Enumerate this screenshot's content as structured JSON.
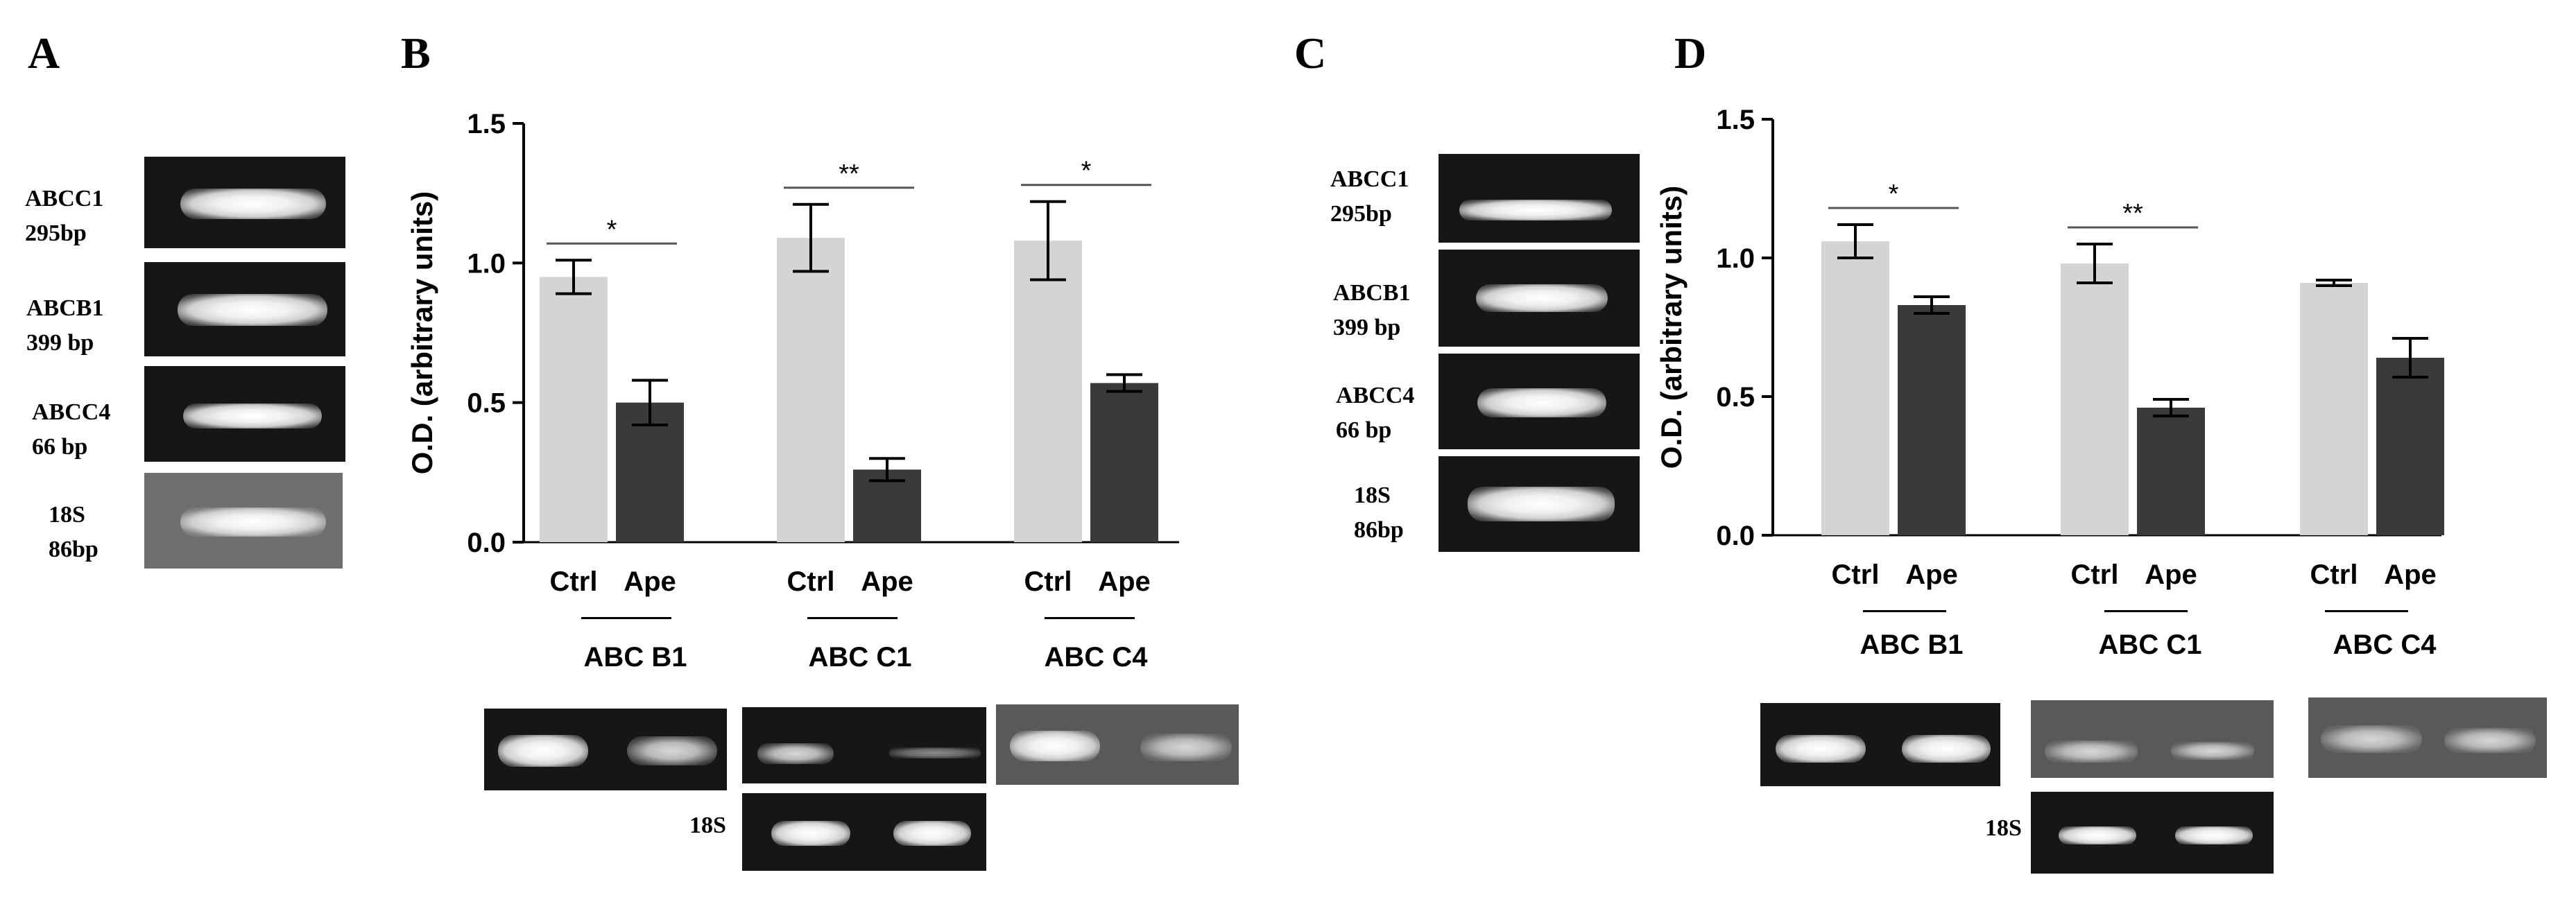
{
  "panels": {
    "A": "A",
    "B": "B",
    "C": "C",
    "D": "D"
  },
  "panel_a_labels": [
    {
      "gene": "ABCC1",
      "size": "295bp"
    },
    {
      "gene": "ABCB1",
      "size": "399 bp"
    },
    {
      "gene": "ABCC4",
      "size": "66 bp"
    },
    {
      "gene": "18S",
      "size": "86bp"
    }
  ],
  "panel_c_labels": [
    {
      "gene": "ABCC1",
      "size": "295bp"
    },
    {
      "gene": "ABCB1",
      "size": "399 bp"
    },
    {
      "gene": "ABCC4",
      "size": "66 bp"
    },
    {
      "gene": "18S",
      "size": "86bp"
    }
  ],
  "gel_18s_label": "18S",
  "colors": {
    "ctrl": "#d4d4d4",
    "ape": "#3a3a3a",
    "axis": "#000000"
  },
  "chart_data": [
    {
      "panel": "B",
      "type": "bar",
      "ylabel": "O.D. (arbitrary units)",
      "ylim": [
        0,
        1.5
      ],
      "yticks": [
        "0.0",
        "0.5",
        "1.0",
        "1.5"
      ],
      "bar_labels": [
        "Ctrl",
        "Ape"
      ],
      "groups": [
        {
          "name": "ABC B1",
          "ctrl": 0.95,
          "ctrl_err": 0.06,
          "ape": 0.5,
          "ape_err": 0.08,
          "sig": "*"
        },
        {
          "name": "ABC C1",
          "ctrl": 1.09,
          "ctrl_err": 0.12,
          "ape": 0.26,
          "ape_err": 0.04,
          "sig": "**"
        },
        {
          "name": "ABC C4",
          "ctrl": 1.08,
          "ctrl_err": 0.14,
          "ape": 0.57,
          "ape_err": 0.03,
          "sig": "*"
        }
      ]
    },
    {
      "panel": "D",
      "type": "bar",
      "ylabel": "O.D. (arbitrary units)",
      "ylim": [
        0,
        1.5
      ],
      "yticks": [
        "0.0",
        "0.5",
        "1.0",
        "1.5"
      ],
      "bar_labels": [
        "Ctrl",
        "Ape"
      ],
      "groups": [
        {
          "name": "ABC B1",
          "ctrl": 1.06,
          "ctrl_err": 0.06,
          "ape": 0.83,
          "ape_err": 0.03,
          "sig": "*"
        },
        {
          "name": "ABC C1",
          "ctrl": 0.98,
          "ctrl_err": 0.07,
          "ape": 0.46,
          "ape_err": 0.03,
          "sig": "**"
        },
        {
          "name": "ABC C4",
          "ctrl": 0.91,
          "ctrl_err": 0.01,
          "ape": 0.64,
          "ape_err": 0.07,
          "sig": ""
        }
      ]
    }
  ]
}
